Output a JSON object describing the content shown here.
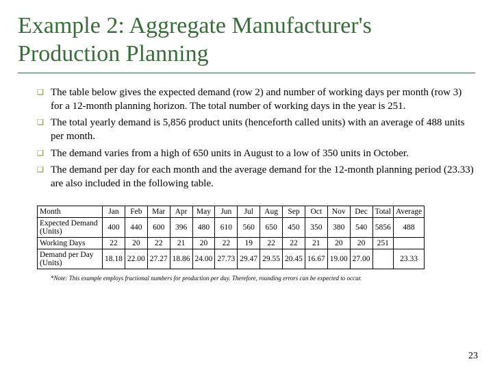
{
  "title": "Example 2: Aggregate Manufacturer's Production Planning",
  "title_color": "#3a6b3a",
  "rule_color": "#3a6b3a",
  "bullet_color": "#6b8e23",
  "bullets": [
    "The table below gives the expected demand (row 2) and number of working days per month (row 3) for a 12-month planning horizon. The total number of working days in the year is 251.",
    "The total yearly demand is 5,856 product units (henceforth called units) with an average of 488 units per month.",
    "The demand varies from a high of 650 units in August to a low of 350 units in October.",
    "The demand per day for each month and the average demand for the 12-month planning period (23.33) are also included in the following table."
  ],
  "table": {
    "columns": [
      "Month",
      "Jan",
      "Feb",
      "Mar",
      "Apr",
      "May",
      "Jun",
      "Jul",
      "Aug",
      "Sep",
      "Oct",
      "Nov",
      "Dec",
      "Total",
      "Average"
    ],
    "rows": [
      {
        "label": "Expected Demand (Units)",
        "cells": [
          "400",
          "440",
          "600",
          "396",
          "480",
          "610",
          "560",
          "650",
          "450",
          "350",
          "380",
          "540",
          "5856",
          "488"
        ]
      },
      {
        "label": "Working Days",
        "cells": [
          "22",
          "20",
          "22",
          "21",
          "20",
          "22",
          "19",
          "22",
          "22",
          "21",
          "20",
          "20",
          "251",
          ""
        ]
      },
      {
        "label": "Demand per Day (Units)",
        "cells": [
          "18.18",
          "22.00",
          "27.27",
          "18.86",
          "24.00",
          "27.73",
          "29.47",
          "29.55",
          "20.45",
          "16.67",
          "19.00",
          "27.00",
          "",
          "23.33"
        ]
      }
    ]
  },
  "footnote": "*Note: This example employs fractional numbers for production per day. Therefore, rounding errors can be expected to occur.",
  "page_number": "23"
}
